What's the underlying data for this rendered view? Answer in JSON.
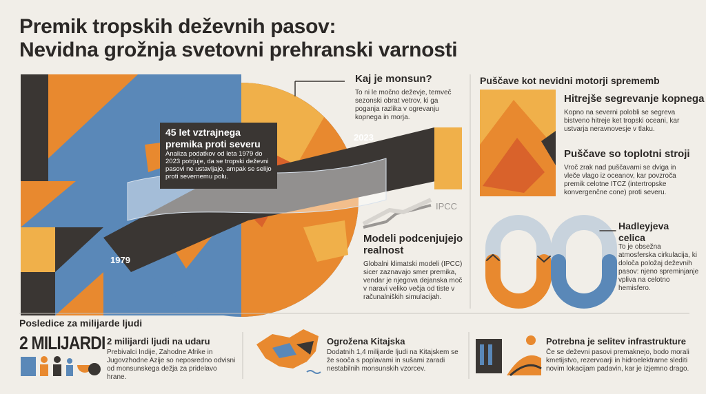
{
  "title": {
    "line1": "Premik tropskih deževnih pasov:",
    "line2": "Nevidna grožnja svetovni prehranski varnosti"
  },
  "globe": {
    "callout_title": "45 let vztrajnega premika proti severu",
    "callout_text": "Analiza podatkov od leta 1979 do 2023 potrjuje, da se tropski deževni pasovi ne ustavljajo, ampak se selijo proti severnemu polu.",
    "year_start": "1979",
    "year_end": "2023"
  },
  "monsoon": {
    "title": "Kaj je monsun?",
    "text": "To ni le močno deževje, temveč sezonski obrat vetrov, ki ga poganja razlika v ogrevanju kopnega in morja."
  },
  "models": {
    "label": "IPCC",
    "title": "Modeli podcenjujejo realnost",
    "text": "Globalni klimatski modeli (IPCC) sicer zaznavajo smer premika, vendar je njegova dejanska moč v naravi veliko večja od tiste v računalniških simulacijah."
  },
  "deserts": {
    "heading": "Puščave kot nevidni motorji sprememb",
    "items": [
      {
        "title": "Hitrejše segrevanje kopnega",
        "text": "Kopno na severni polobli se segreva bistveno hitreje ket tropski oceani, kar ustvarja neravnovesje v tlaku."
      },
      {
        "title": "Puščave so toplotni stroji",
        "text": "Vroč zrak nad puščavami se dviga in vleče vlago iz oceanov, kar povzroča premik celotne ITCZ (intertropske konvergenčne cone) proti severu."
      }
    ]
  },
  "hadley": {
    "title": "Hadleyjeva celica",
    "text": "To je obsežna atmosferska cirkulacija, ki določa položaj deževnih pasov: njeno spreminjanje vpliva na celotno hemisfero."
  },
  "consequences": {
    "heading": "Posledice za milijarde ljudi",
    "big_number": "2 MILIJARDI",
    "items": [
      {
        "title": "2 milijardi ljudi na udaru",
        "text": "Prebivalci Indije, Zahodne Afrike in Jugovzhodne Azije so neposredno odvisni od monsunskega dežja za pridelavo hrane."
      },
      {
        "title": "Ogrožena Kitajska",
        "text": "Dodatnih 1,4 milijarde ljudi na Kitajskem se že sooča s poplavami in sušami zaradi nestabilnih monsunskih vzorcev."
      },
      {
        "title": "Potrebna je selitev infrastrukture",
        "text": "Če se deževni pasovi premaknejo, bodo morali kmetijstvo, rezervoarji in hidroelektrarne slediti novim lokacijam padavin, kar je izjemno drago."
      }
    ]
  }
}
